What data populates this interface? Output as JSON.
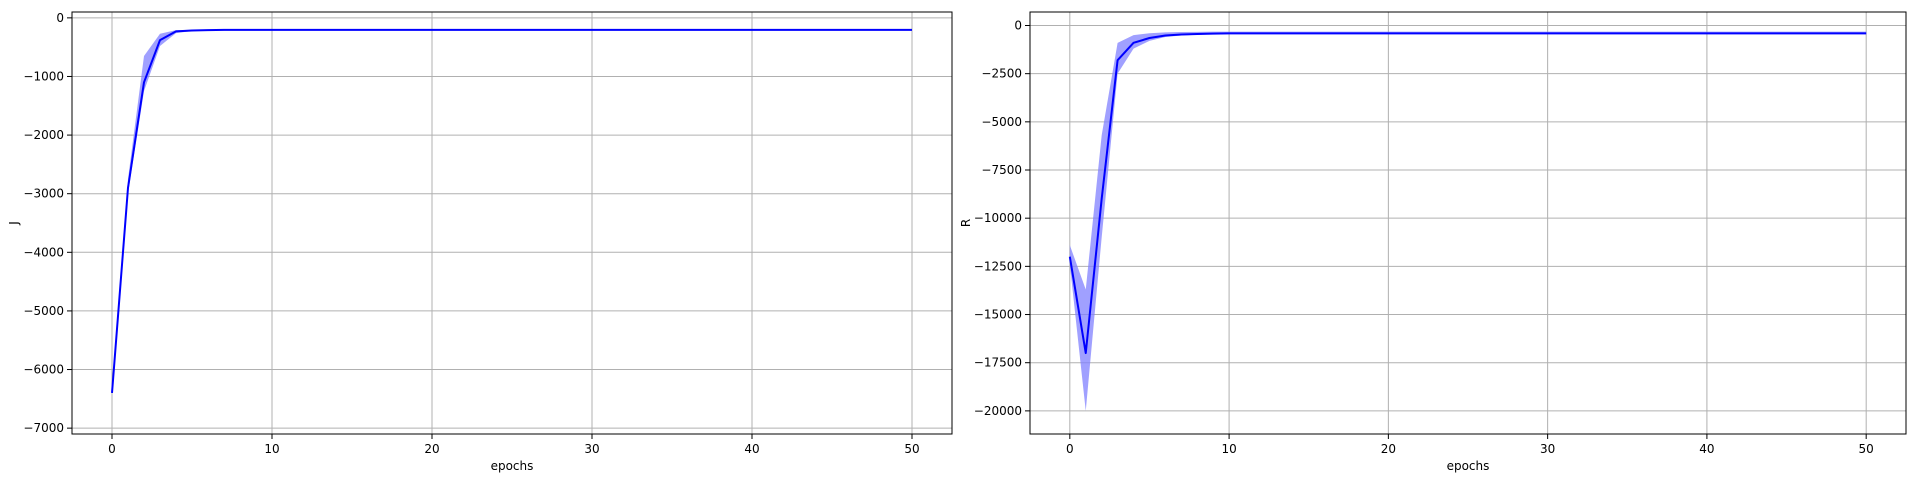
{
  "colors": {
    "line": "#0000ff",
    "band": "#8080ff",
    "grid": "#b0b0b0",
    "axes": "#000000",
    "background": "#ffffff"
  },
  "chart_data": [
    {
      "type": "line",
      "title": "",
      "xlabel": "epochs",
      "ylabel": "J",
      "xlim": [
        -2.5,
        52.5
      ],
      "ylim": [
        -7100,
        100
      ],
      "xticks": [
        0,
        10,
        20,
        30,
        40,
        50
      ],
      "yticks": [
        0,
        -1000,
        -2000,
        -3000,
        -4000,
        -5000,
        -6000,
        -7000
      ],
      "ytick_labels": [
        "0",
        "−1000",
        "−2000",
        "−3000",
        "−4000",
        "−5000",
        "−6000",
        "−7000"
      ],
      "grid": true,
      "legend": "none",
      "x": [
        0,
        1,
        2,
        3,
        4,
        5,
        6,
        7,
        8,
        9,
        10,
        15,
        20,
        30,
        40,
        50
      ],
      "series": [
        {
          "values": [
            -6400,
            -2900,
            -1100,
            -380,
            -230,
            -215,
            -210,
            -205,
            -205,
            -205,
            -205,
            -205,
            -205,
            -205,
            -205,
            -205
          ],
          "lower": [
            -6400,
            -3000,
            -1250,
            -480,
            -260,
            -225,
            -215,
            -210,
            -208,
            -207,
            -207,
            -207,
            -207,
            -207,
            -207,
            -207
          ],
          "upper": [
            -6400,
            -2750,
            -650,
            -270,
            -210,
            -205,
            -203,
            -202,
            -202,
            -202,
            -202,
            -202,
            -202,
            -202,
            -202,
            -202
          ]
        }
      ]
    },
    {
      "type": "line",
      "title": "",
      "xlabel": "epochs",
      "ylabel": "R",
      "xlim": [
        -2.5,
        52.5
      ],
      "ylim": [
        -21200,
        700
      ],
      "xticks": [
        0,
        10,
        20,
        30,
        40,
        50
      ],
      "yticks": [
        0,
        -2500,
        -5000,
        -7500,
        -10000,
        -12500,
        -15000,
        -17500,
        -20000
      ],
      "ytick_labels": [
        "0",
        "−2500",
        "−5000",
        "−7500",
        "−10000",
        "−12500",
        "−15000",
        "−17500",
        "−20000"
      ],
      "grid": true,
      "legend": "none",
      "x": [
        0,
        1,
        2,
        3,
        4,
        5,
        6,
        7,
        8,
        9,
        10,
        15,
        20,
        30,
        40,
        50
      ],
      "series": [
        {
          "values": [
            -12000,
            -17000,
            -9000,
            -1800,
            -900,
            -650,
            -520,
            -470,
            -440,
            -420,
            -410,
            -410,
            -410,
            -410,
            -410,
            -410
          ],
          "lower": [
            -12400,
            -20000,
            -11000,
            -2500,
            -1200,
            -800,
            -600,
            -520,
            -480,
            -460,
            -450,
            -450,
            -450,
            -450,
            -450,
            -450
          ],
          "upper": [
            -11400,
            -13700,
            -5700,
            -900,
            -500,
            -400,
            -360,
            -340,
            -330,
            -320,
            -320,
            -320,
            -320,
            -320,
            -320,
            -320
          ]
        }
      ]
    }
  ]
}
